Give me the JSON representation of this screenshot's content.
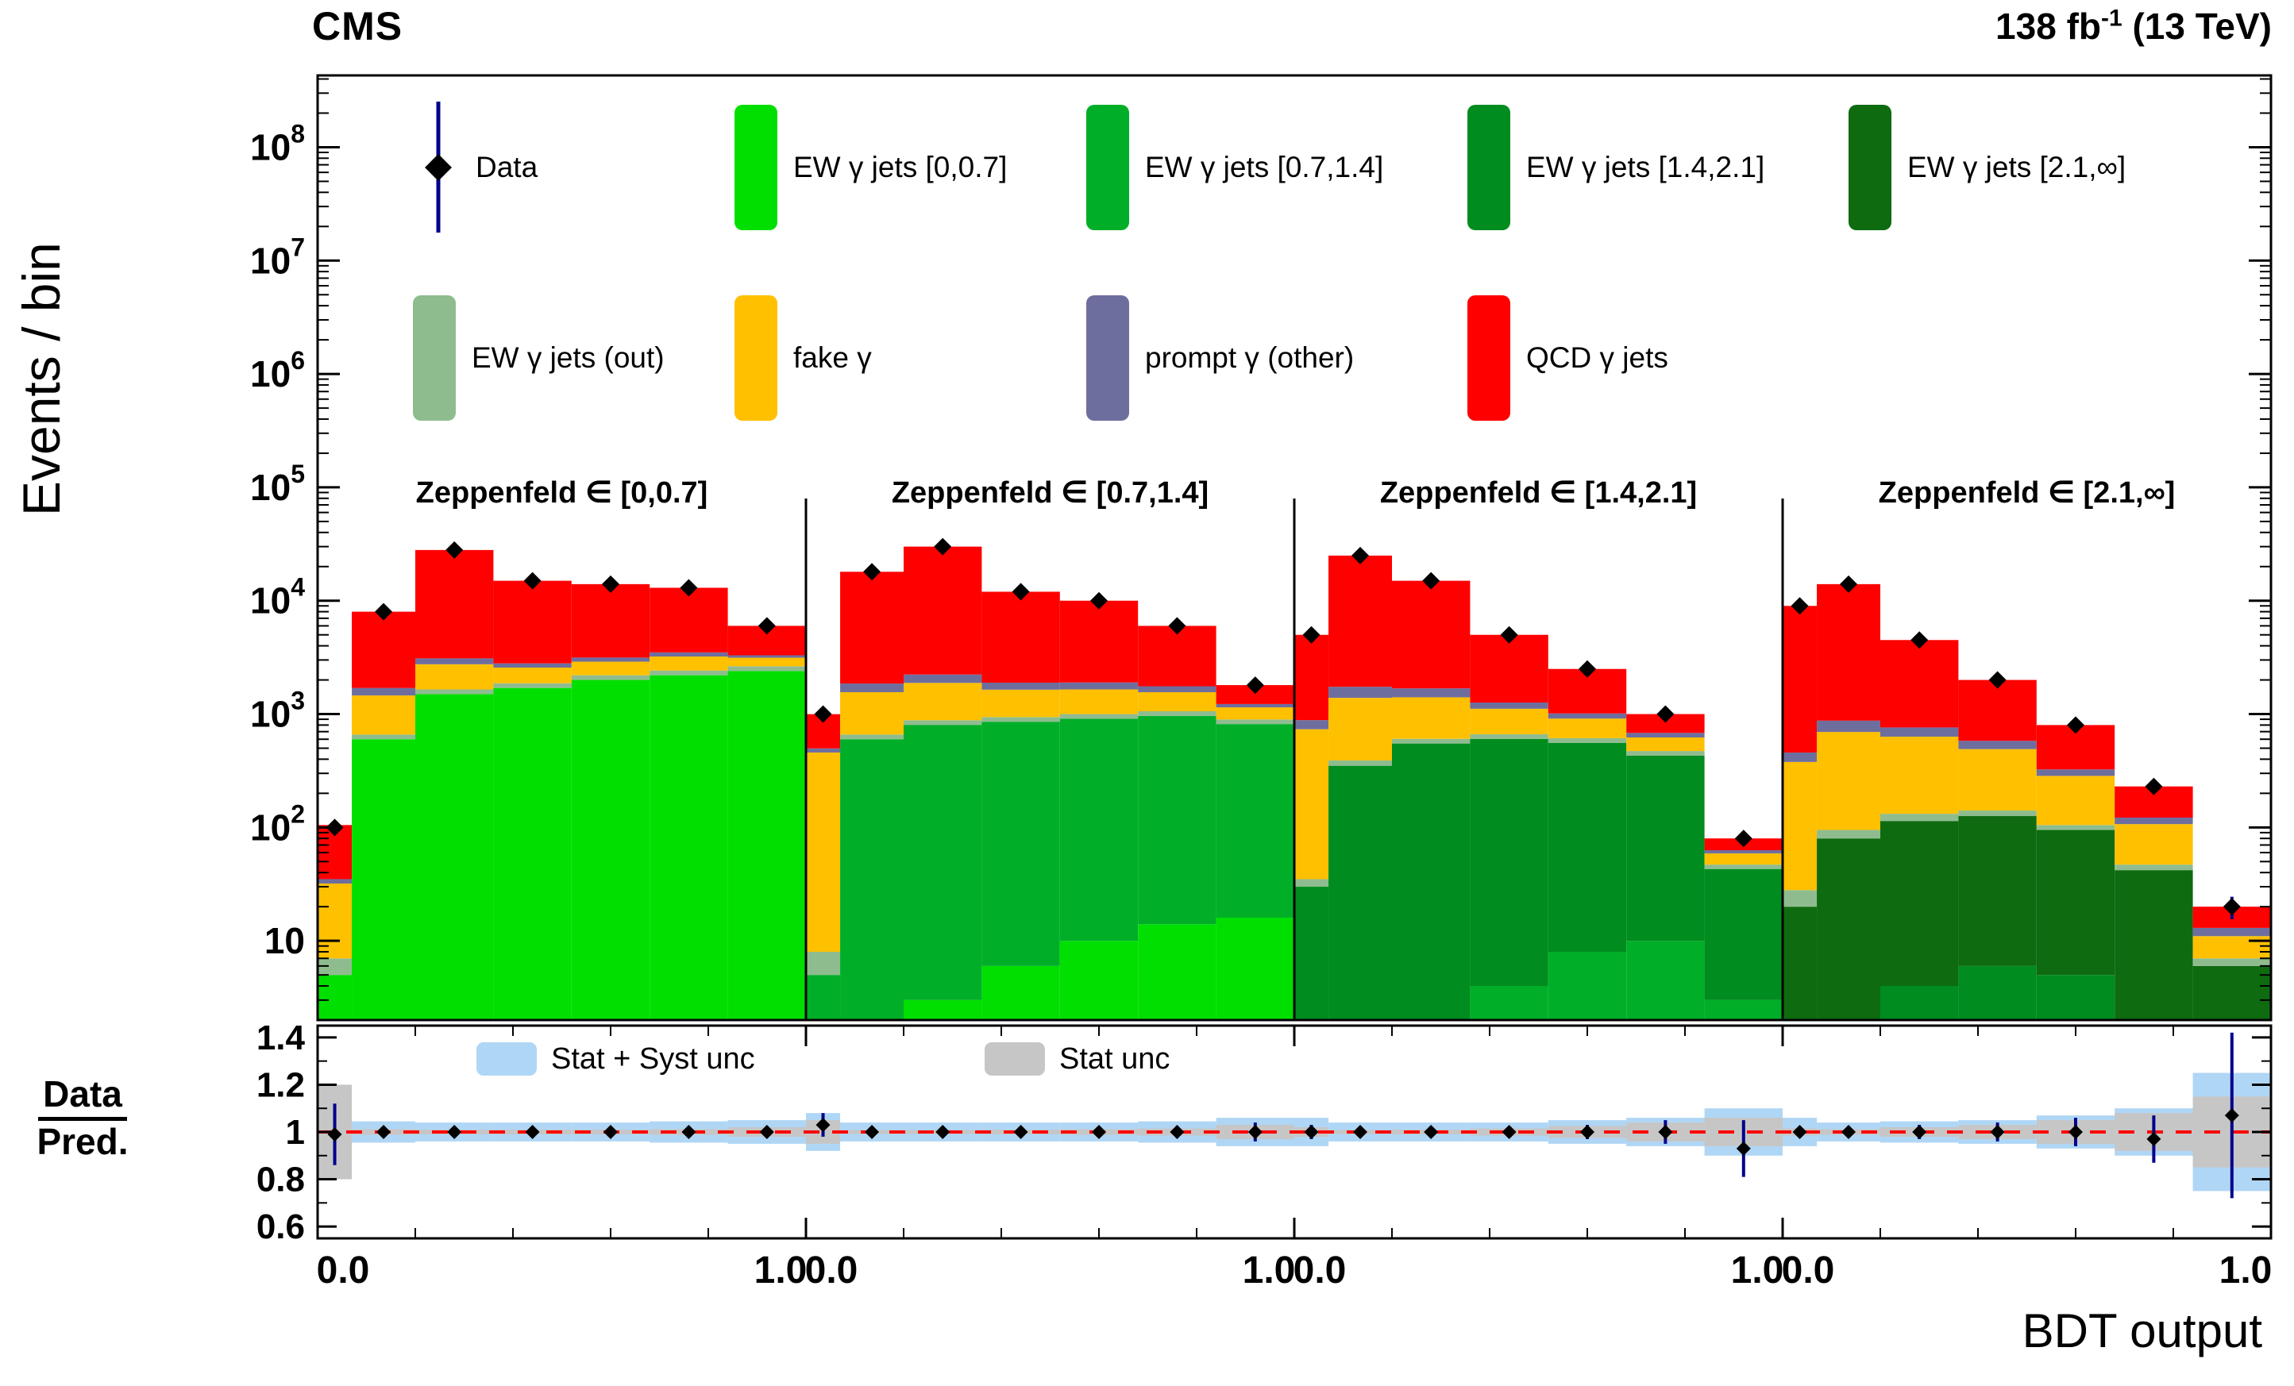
{
  "header": {
    "experiment": "CMS",
    "lumi_prefix": "138 fb",
    "lumi_sup": "-1",
    "lumi_suffix": " (13 TeV)"
  },
  "axes": {
    "y_label": "Events / bin",
    "x_label": "BDT output",
    "y_ticks": [
      {
        "exp": "8",
        "value": 100000000.0
      },
      {
        "exp": "7",
        "value": 10000000.0
      },
      {
        "exp": "6",
        "value": 1000000.0
      },
      {
        "exp": "5",
        "value": 100000.0
      },
      {
        "exp": "4",
        "value": 10000.0
      },
      {
        "exp": "3",
        "value": 1000.0
      },
      {
        "exp": "2",
        "value": 100
      },
      {
        "exp": "",
        "value": 10
      }
    ],
    "ratio_num": "Data",
    "ratio_den": "Pred.",
    "ratio_ticks": [
      {
        "label": "1.4",
        "value": 1.4
      },
      {
        "label": "1.2",
        "value": 1.2
      },
      {
        "label": "1",
        "value": 1.0
      },
      {
        "label": "0.8",
        "value": 0.8
      },
      {
        "label": "0.6",
        "value": 0.6
      }
    ],
    "x_tick_low": "0.0",
    "x_tick_high": "1.0"
  },
  "legend": {
    "data_entry": {
      "label": "Data",
      "marker_color": "#000000",
      "line_color": "#00008B"
    },
    "row1": [
      {
        "label": "EW γ jets [0,0.7]",
        "color": "#00DF00"
      },
      {
        "label": "EW γ jets [0.7,1.4]",
        "color": "#00AE28"
      },
      {
        "label": "EW γ jets [1.4,2.1]",
        "color": "#008C1E"
      },
      {
        "label": "EW γ jets [2.1,∞]",
        "color": "#0E6B10"
      }
    ],
    "row2": [
      {
        "label": "EW γ jets (out)",
        "color": "#8FBC8F"
      },
      {
        "label": "fake γ",
        "color": "#FFC000"
      },
      {
        "label": "prompt γ (other)",
        "color": "#6E6E9E"
      },
      {
        "label": "QCD γ jets",
        "color": "#FF0000"
      }
    ]
  },
  "ratio_legend": [
    {
      "label": "Stat + Syst unc",
      "color": "#B0D6F5"
    },
    {
      "label": "Stat unc",
      "color": "#C6C6C6"
    }
  ],
  "ratio_line_color": "#FF0000",
  "marker": {
    "color": "#000000",
    "error_color": "#00008B"
  },
  "chart_data": {
    "type": "bar",
    "subtype": "stacked-histogram-log-with-ratio",
    "xlabel": "BDT output",
    "ylabel": "Events / bin",
    "x_range": [
      0,
      1
    ],
    "y_range": [
      2,
      430000000.0
    ],
    "ratio_range": [
      0.55,
      1.45
    ],
    "bin_edges": [
      0,
      0.07,
      0.2,
      0.36,
      0.52,
      0.68,
      0.84,
      1.0
    ],
    "panels": [
      {
        "title": "Zeppenfeld ∈ [0,0.7]",
        "stacks": [
          {
            "name": "EW γ jets [0,0.7]",
            "color": "#00DF00",
            "values": [
              5,
              600,
              1500,
              1700,
              2000,
              2200,
              2400
            ]
          },
          {
            "name": "EW γ jets (out)",
            "color": "#8FBC8F",
            "values": [
              2,
              60,
              150,
              170,
              200,
              220,
              240
            ]
          },
          {
            "name": "fake γ",
            "color": "#FFC000",
            "values": [
              25,
              800,
              1100,
              700,
              700,
              800,
              500
            ]
          },
          {
            "name": "prompt γ (other)",
            "color": "#6E6E9E",
            "values": [
              3,
              240,
              350,
              230,
              250,
              280,
              160
            ]
          },
          {
            "name": "QCD γ jets",
            "color": "#FF0000",
            "values": [
              70,
              6300,
              24900,
              12200,
              10850,
              9500,
              2700
            ]
          }
        ],
        "data": [
          100,
          8000,
          28000,
          15000,
          14000,
          13000,
          6000
        ],
        "ratio": {
          "values": [
            0.99,
            1.0,
            1.0,
            1.0,
            1.0,
            1.0,
            1.0
          ],
          "err": [
            0.13,
            0.02,
            0.015,
            0.015,
            0.015,
            0.02,
            0.025
          ],
          "syst": [
            0.1,
            0.045,
            0.04,
            0.04,
            0.04,
            0.045,
            0.05
          ],
          "stat": [
            0.2,
            0.012,
            0.01,
            0.01,
            0.01,
            0.012,
            0.02
          ]
        }
      },
      {
        "title": "Zeppenfeld ∈ [0.7,1.4]",
        "stacks": [
          {
            "name": "EW γ jets [0,0.7]",
            "color": "#00DF00",
            "values": [
              0,
              0,
              3,
              6,
              10,
              14,
              16
            ]
          },
          {
            "name": "EW γ jets [0.7,1.4]",
            "color": "#00AE28",
            "values": [
              5,
              600,
              800,
              850,
              900,
              950,
              800
            ]
          },
          {
            "name": "EW γ jets (out)",
            "color": "#8FBC8F",
            "values": [
              3,
              60,
              80,
              85,
              90,
              95,
              80
            ]
          },
          {
            "name": "fake γ",
            "color": "#FFC000",
            "values": [
              450,
              900,
              1000,
              700,
              650,
              500,
              250
            ]
          },
          {
            "name": "prompt γ (other)",
            "color": "#6E6E9E",
            "values": [
              40,
              300,
              350,
              250,
              250,
              200,
              80
            ]
          },
          {
            "name": "QCD γ jets",
            "color": "#FF0000",
            "values": [
              500,
              16140,
              27770,
              10110,
              8100,
              4240,
              575
            ]
          }
        ],
        "data": [
          1000,
          18000,
          30000,
          12000,
          10000,
          6000,
          1800
        ],
        "ratio": {
          "values": [
            1.03,
            1.0,
            1.0,
            1.0,
            1.0,
            1.0,
            1.0
          ],
          "err": [
            0.05,
            0.015,
            0.015,
            0.015,
            0.02,
            0.025,
            0.04
          ],
          "syst": [
            0.08,
            0.04,
            0.04,
            0.04,
            0.04,
            0.045,
            0.06
          ],
          "stat": [
            0.05,
            0.008,
            0.008,
            0.01,
            0.012,
            0.015,
            0.03
          ]
        }
      },
      {
        "title": "Zeppenfeld ∈ [1.4,2.1]",
        "stacks": [
          {
            "name": "EW γ jets [0.7,1.4]",
            "color": "#00AE28",
            "values": [
              0,
              0,
              0,
              4,
              8,
              10,
              3
            ]
          },
          {
            "name": "EW γ jets [1.4,2.1]",
            "color": "#008C1E",
            "values": [
              30,
              350,
              550,
              600,
              550,
              420,
              40
            ]
          },
          {
            "name": "EW γ jets (out)",
            "color": "#8FBC8F",
            "values": [
              5,
              40,
              55,
              60,
              55,
              42,
              4
            ]
          },
          {
            "name": "fake γ",
            "color": "#FFC000",
            "values": [
              700,
              1000,
              800,
              450,
              300,
              150,
              12
            ]
          },
          {
            "name": "prompt γ (other)",
            "color": "#6E6E9E",
            "values": [
              150,
              350,
              280,
              150,
              100,
              60,
              4
            ]
          },
          {
            "name": "QCD γ jets",
            "color": "#FF0000",
            "values": [
              4115,
              23260,
              13315,
              3736,
              1487,
              318,
              17
            ]
          }
        ],
        "data": [
          5000,
          25000,
          15000,
          5000,
          2500,
          1000,
          80
        ],
        "ratio": {
          "values": [
            1.0,
            1.0,
            1.0,
            1.0,
            1.0,
            1.0,
            0.93
          ],
          "err": [
            0.03,
            0.015,
            0.015,
            0.02,
            0.03,
            0.05,
            0.12
          ],
          "syst": [
            0.06,
            0.04,
            0.04,
            0.04,
            0.05,
            0.06,
            0.1
          ],
          "stat": [
            0.02,
            0.008,
            0.01,
            0.015,
            0.025,
            0.04,
            0.06
          ]
        }
      },
      {
        "title": "Zeppenfeld ∈ [2.1,∞]",
        "stacks": [
          {
            "name": "EW γ jets [1.4,2.1]",
            "color": "#008C1E",
            "values": [
              0,
              0,
              4,
              6,
              5,
              2,
              0
            ]
          },
          {
            "name": "EW γ jets [2.1,∞]",
            "color": "#0E6B10",
            "values": [
              20,
              80,
              110,
              120,
              90,
              40,
              6
            ]
          },
          {
            "name": "EW γ jets (out)",
            "color": "#8FBC8F",
            "values": [
              8,
              15,
              18,
              15,
              10,
              5,
              1
            ]
          },
          {
            "name": "fake γ",
            "color": "#FFC000",
            "values": [
              350,
              600,
              500,
              350,
              180,
              60,
              4
            ]
          },
          {
            "name": "prompt γ (other)",
            "color": "#6E6E9E",
            "values": [
              80,
              180,
              130,
              90,
              40,
              15,
              2
            ]
          },
          {
            "name": "QCD γ jets",
            "color": "#FF0000",
            "values": [
              8540,
              13125,
              3738,
              1419,
              475,
              108,
              7
            ]
          }
        ],
        "data": [
          9000,
          14000,
          4500,
          2000,
          800,
          230,
          20
        ],
        "ratio": {
          "values": [
            1.0,
            1.0,
            1.0,
            1.0,
            1.0,
            0.97,
            1.07
          ],
          "err": [
            0.02,
            0.02,
            0.03,
            0.04,
            0.06,
            0.1,
            0.35
          ],
          "syst": [
            0.06,
            0.04,
            0.045,
            0.05,
            0.07,
            0.1,
            0.25
          ],
          "stat": [
            0.015,
            0.012,
            0.02,
            0.03,
            0.05,
            0.08,
            0.15
          ]
        }
      }
    ]
  }
}
